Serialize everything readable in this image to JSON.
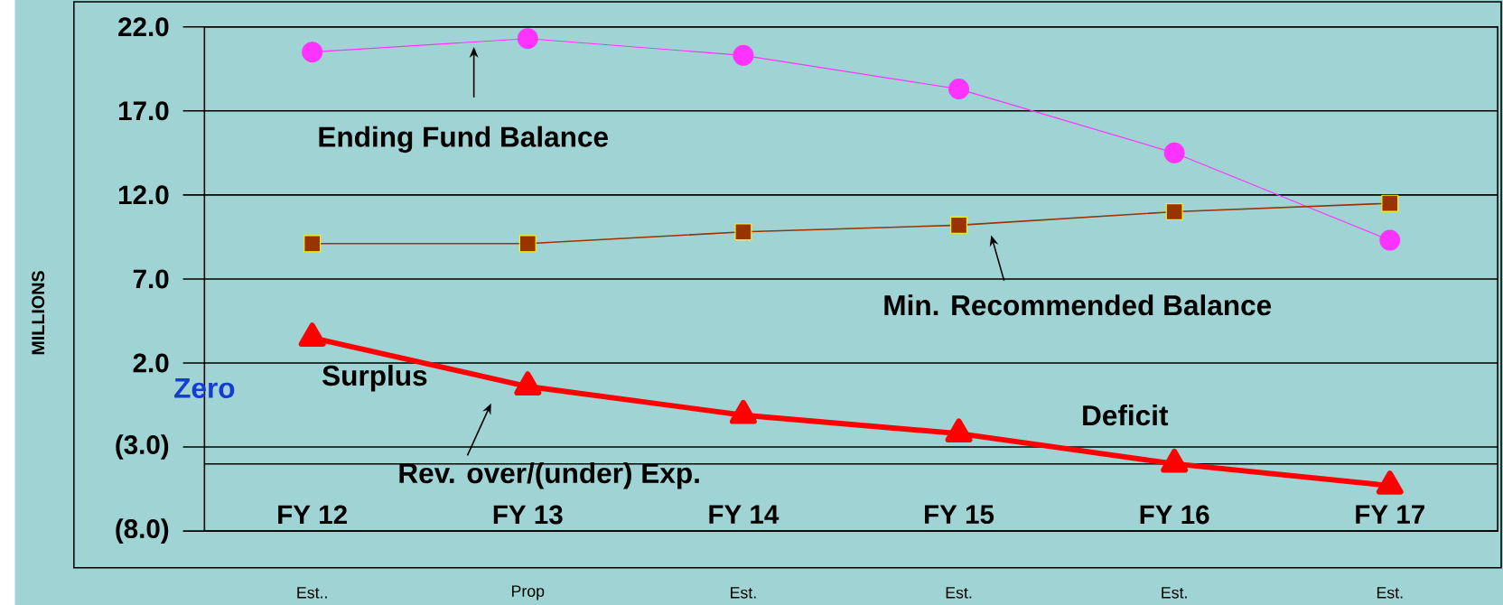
{
  "chart_data": {
    "type": "line",
    "ylabel": "MILLIONS",
    "categories": [
      "FY 12",
      "FY 13",
      "FY 14",
      "FY 15",
      "FY 16",
      "FY 17"
    ],
    "ylim": [
      -8,
      22
    ],
    "yticks": [
      {
        "value": -8,
        "label": "(8.0)"
      },
      {
        "value": -3,
        "label": "(3.0)"
      },
      {
        "value": 2,
        "label": "2.0"
      },
      {
        "value": 7,
        "label": "7.0"
      },
      {
        "value": 12,
        "label": "12.0"
      },
      {
        "value": 17,
        "label": "17.0"
      },
      {
        "value": 22,
        "label": "22.0"
      }
    ],
    "grid": "y",
    "series": [
      {
        "name": "Ending Fund Balance",
        "color": "#ff33ff",
        "marker": "circle",
        "values": [
          20.5,
          21.3,
          20.3,
          18.3,
          14.5,
          9.3
        ]
      },
      {
        "name": "Min. Recommended Balance",
        "color": "#993300",
        "marker": "square",
        "values": [
          9.1,
          9.1,
          9.8,
          10.2,
          11.0,
          11.5
        ]
      },
      {
        "name": "Rev. over/(under) Exp.",
        "color": "#ff0000",
        "marker": "triangle",
        "values": [
          3.5,
          0.6,
          -1.1,
          -2.2,
          -4.0,
          -5.3
        ]
      }
    ],
    "ref_lines": [
      {
        "axis": "y",
        "value": -4.0,
        "color": "#000000"
      }
    ],
    "annotations": [
      "Surplus",
      "Deficit",
      "Zero",
      "Est..",
      "Prop",
      "Est.",
      "Est.",
      "Est.",
      "Est."
    ]
  }
}
